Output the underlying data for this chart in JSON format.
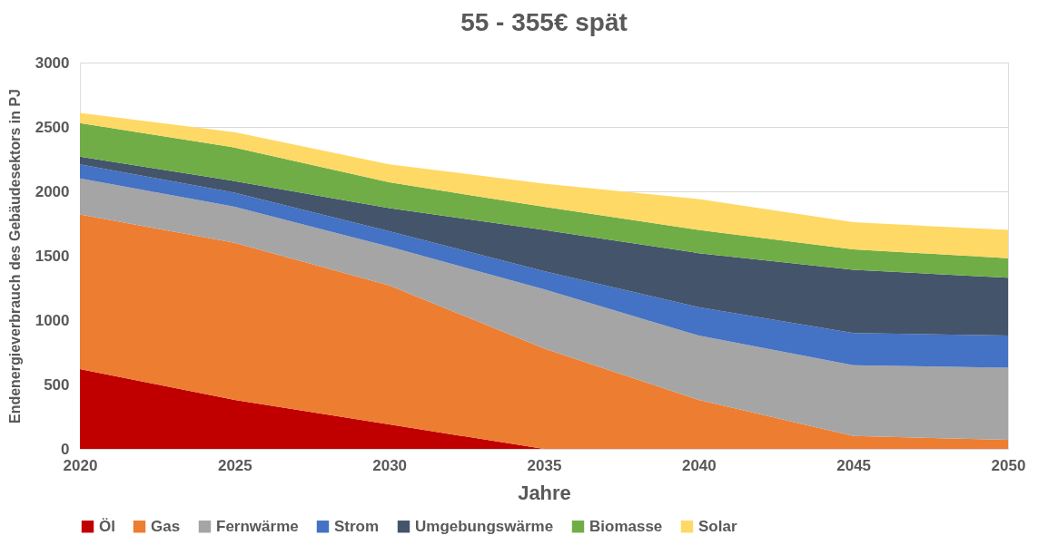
{
  "chart_data": {
    "type": "area",
    "title": "55 - 355€ spät",
    "xlabel": "Jahre",
    "ylabel": "Endenergieverbrauch des Gebäudesektors in PJ",
    "x": [
      2020,
      2025,
      2030,
      2035,
      2040,
      2045,
      2050
    ],
    "stacked": true,
    "series": [
      {
        "name": "Öl",
        "color": "#c00000",
        "values": [
          620,
          380,
          190,
          0,
          0,
          0,
          0
        ]
      },
      {
        "name": "Gas",
        "color": "#ed7d31",
        "values": [
          1200,
          1220,
          1080,
          780,
          380,
          100,
          70
        ]
      },
      {
        "name": "Fernwärme",
        "color": "#a5a5a5",
        "values": [
          280,
          280,
          300,
          460,
          500,
          550,
          560
        ]
      },
      {
        "name": "Strom",
        "color": "#4472c4",
        "values": [
          110,
          110,
          120,
          140,
          220,
          250,
          250
        ]
      },
      {
        "name": "Umgebungswärme",
        "color": "#44546a",
        "values": [
          60,
          90,
          180,
          320,
          420,
          490,
          450
        ]
      },
      {
        "name": "Biomasse",
        "color": "#70ad47",
        "values": [
          260,
          260,
          200,
          180,
          180,
          160,
          150
        ]
      },
      {
        "name": "Solar",
        "color": "#ffd966",
        "values": [
          80,
          120,
          140,
          180,
          240,
          210,
          220
        ]
      }
    ],
    "xlim": [
      2020,
      2050
    ],
    "xticks": [
      2020,
      2025,
      2030,
      2035,
      2040,
      2045,
      2050
    ],
    "ylim": [
      0,
      3000
    ],
    "yticks": [
      0,
      500,
      1000,
      1500,
      2000,
      2500,
      3000
    ],
    "grid": "y",
    "legend": "bottom"
  }
}
